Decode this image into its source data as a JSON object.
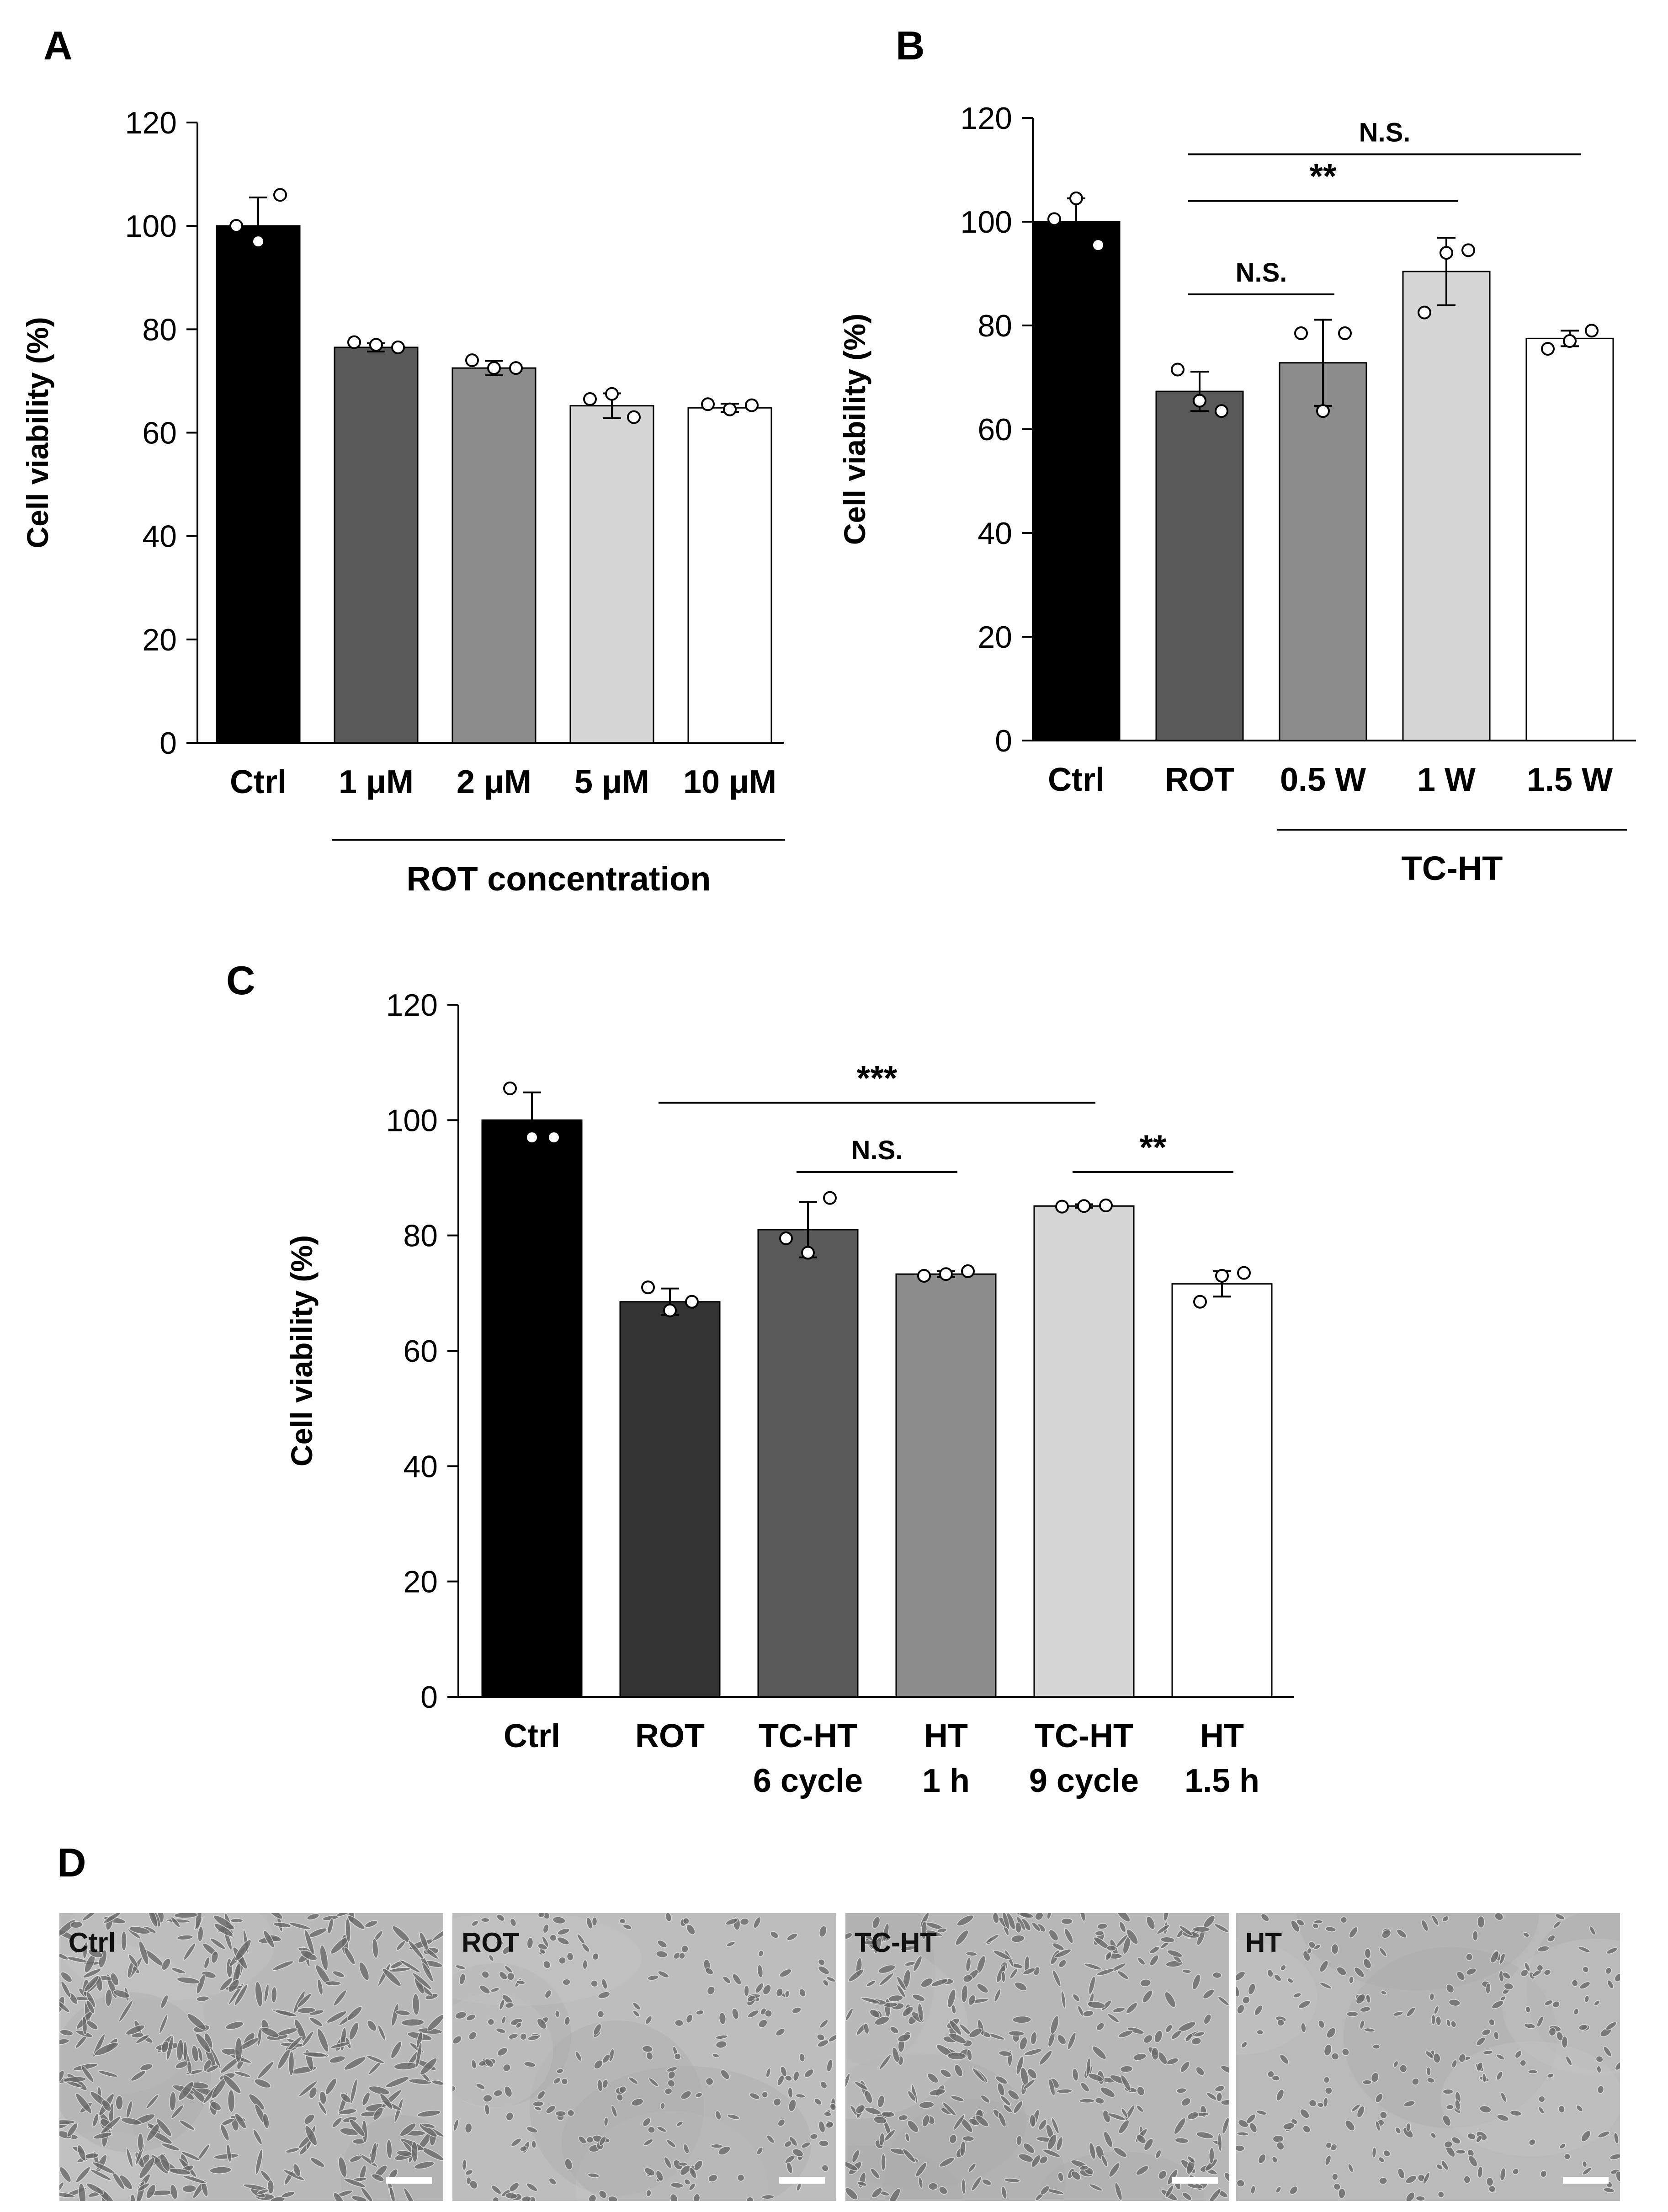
{
  "figure": {
    "panel_labels": [
      "A",
      "B",
      "C",
      "D"
    ]
  },
  "colors": {
    "black": "#000000",
    "dark1": "#333333",
    "dark2": "#595959",
    "mid": "#8c8c8c",
    "light": "#d6d6d6",
    "white": "#ffffff"
  },
  "chart_data": [
    {
      "panel": "A",
      "type": "bar",
      "ylabel": "Cell viability (%)",
      "ylim": [
        0,
        120
      ],
      "yticks": [
        0,
        20,
        40,
        60,
        80,
        100,
        120
      ],
      "categories": [
        "Ctrl",
        "1 μM",
        "2 μM",
        "5 μM",
        "10 μM"
      ],
      "values": [
        100,
        76.5,
        72.5,
        65.2,
        64.8
      ],
      "errors": [
        5.5,
        0.8,
        1.4,
        2.4,
        0.8
      ],
      "replicates": [
        [
          100,
          97,
          106
        ],
        [
          77.5,
          77,
          76.5
        ],
        [
          74,
          72.5,
          72.5
        ],
        [
          66.5,
          67.5,
          63
        ],
        [
          65.5,
          64.5,
          65.3
        ]
      ],
      "fills": [
        "#000000",
        "#595959",
        "#8c8c8c",
        "#d6d6d6",
        "#ffffff"
      ],
      "group_label": "ROT concentration",
      "group_span": [
        1,
        4
      ],
      "significance": []
    },
    {
      "panel": "B",
      "type": "bar",
      "ylabel": "Cell viability (%)",
      "ylim": [
        0,
        120
      ],
      "yticks": [
        0,
        20,
        40,
        60,
        80,
        100,
        120
      ],
      "categories": [
        "Ctrl",
        "ROT",
        "0.5 W",
        "1 W",
        "1.5 W"
      ],
      "values": [
        100,
        67.3,
        72.8,
        90.4,
        77.5
      ],
      "errors": [
        4.5,
        3.8,
        8.3,
        6.5,
        1.5
      ],
      "replicates": [
        [
          100.5,
          104.5,
          95.5
        ],
        [
          71.5,
          65.5,
          63.5
        ],
        [
          78.5,
          63.5,
          78.5
        ],
        [
          82.5,
          94,
          94.5
        ],
        [
          75.5,
          77,
          79
        ]
      ],
      "fills": [
        "#000000",
        "#595959",
        "#8c8c8c",
        "#d6d6d6",
        "#ffffff"
      ],
      "group_label": "TC-HT",
      "group_span": [
        2,
        4
      ],
      "significance": [
        {
          "from": 1,
          "to": 4,
          "label": "N.S.",
          "y": 113
        },
        {
          "from": 1,
          "to": 3,
          "label": "**",
          "y": 104
        },
        {
          "from": 1,
          "to": 2,
          "label": "N.S.",
          "y": 86
        }
      ]
    },
    {
      "panel": "C",
      "type": "bar",
      "ylabel": "Cell viability (%)",
      "ylim": [
        0,
        120
      ],
      "yticks": [
        0,
        20,
        40,
        60,
        80,
        100,
        120
      ],
      "categories": [
        [
          "Ctrl"
        ],
        [
          "ROT"
        ],
        [
          "TC-HT",
          "6 cycle"
        ],
        [
          "HT",
          "1 h"
        ],
        [
          "TC-HT",
          "9 cycle"
        ],
        [
          "HT",
          "1.5 h"
        ]
      ],
      "values": [
        100,
        68.5,
        81,
        73.3,
        85.1,
        71.6
      ],
      "errors": [
        4.8,
        2.3,
        4.8,
        0.5,
        0.3,
        2.2
      ],
      "replicates": [
        [
          105.5,
          97,
          97
        ],
        [
          71,
          67,
          68.5
        ],
        [
          79.5,
          77,
          86.5
        ],
        [
          73,
          73.3,
          73.8
        ],
        [
          85,
          85.1,
          85.2
        ],
        [
          68.5,
          73,
          73.5
        ]
      ],
      "fills": [
        "#000000",
        "#333333",
        "#595959",
        "#8c8c8c",
        "#d6d6d6",
        "#ffffff"
      ],
      "significance": [
        {
          "from": 1,
          "to": 4,
          "label": "***",
          "y": 103
        },
        {
          "from": 2,
          "to": 3,
          "label": "N.S.",
          "y": 91
        },
        {
          "from": 4,
          "to": 5,
          "label": "**",
          "y": 91
        }
      ]
    }
  ],
  "micrographs": [
    {
      "label": "Ctrl",
      "tone": "#b9b9b9",
      "density": 0.85
    },
    {
      "label": "ROT",
      "tone": "#bdbdbd",
      "density": 0.55
    },
    {
      "label": "TC-HT",
      "tone": "#b7b7b7",
      "density": 0.75
    },
    {
      "label": "HT",
      "tone": "#bababa",
      "density": 0.5
    }
  ]
}
